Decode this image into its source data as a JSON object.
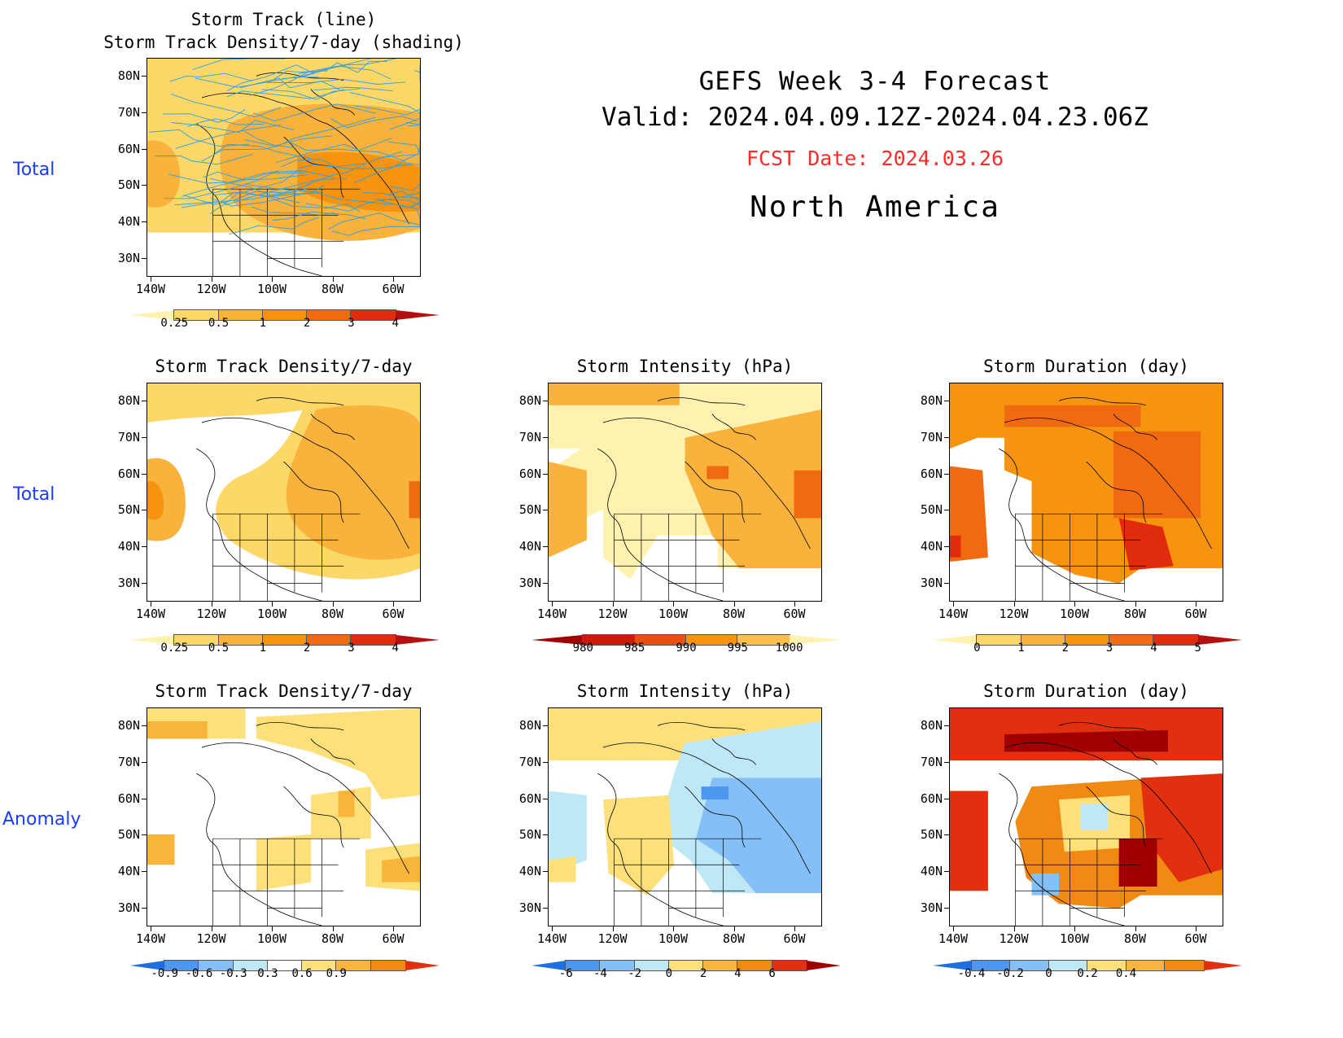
{
  "header": {
    "title": "GEFS Week 3-4 Forecast",
    "valid": "Valid: 2024.04.09.12Z-2024.04.23.06Z",
    "fcst_date": "FCST Date: 2024.03.26",
    "region": "North America"
  },
  "row_labels": [
    "Total",
    "Total",
    "Anomaly"
  ],
  "lat_labels": [
    "80N",
    "70N",
    "60N",
    "50N",
    "40N",
    "30N"
  ],
  "lon_labels": [
    "140W",
    "120W",
    "100W",
    "80W",
    "60W"
  ],
  "panels": [
    {
      "id": "p00",
      "title": "Storm Track (line)\nStorm Track Density/7-day (shading)",
      "colorbar": "density"
    },
    {
      "id": "p10",
      "title": "Storm Track Density/7-day",
      "colorbar": "density"
    },
    {
      "id": "p11",
      "title": "Storm Intensity (hPa)",
      "colorbar": "intensity"
    },
    {
      "id": "p12",
      "title": "Storm Duration (day)",
      "colorbar": "duration"
    },
    {
      "id": "p20",
      "title": "Storm Track Density/7-day",
      "colorbar": "density_anom"
    },
    {
      "id": "p21",
      "title": "Storm Intensity (hPa)",
      "colorbar": "intensity_anom"
    },
    {
      "id": "p22",
      "title": "Storm Duration (day)",
      "colorbar": "duration_anom"
    }
  ],
  "colorbars": {
    "density": {
      "labels": [
        "0.25",
        "0.5",
        "1",
        "2",
        "3",
        "4"
      ],
      "colors": [
        "#fff2b0",
        "#fdd767",
        "#f9b23c",
        "#f6940f",
        "#f06a10",
        "#e02c0c",
        "#b51010"
      ]
    },
    "intensity": {
      "labels": [
        "980",
        "985",
        "990",
        "995",
        "1000"
      ],
      "colors": [
        "#a00000",
        "#cc1a08",
        "#e8500e",
        "#f6940f",
        "#fdc04a",
        "#fff2b0"
      ]
    },
    "duration": {
      "labels": [
        "0",
        "1",
        "2",
        "3",
        "4",
        "5"
      ],
      "colors": [
        "#fff2b0",
        "#fdd767",
        "#f9b23c",
        "#f6940f",
        "#f06a10",
        "#e02c0c",
        "#b51010"
      ]
    },
    "density_anom": {
      "labels": [
        "-0.9",
        "-0.6",
        "-0.3",
        "0.3",
        "0.6",
        "0.9"
      ],
      "colors": [
        "#1f6fe0",
        "#4d97f0",
        "#85bff7",
        "#bfe8f7",
        "#ffffff",
        "#fde07a",
        "#f7b63b",
        "#f08a12",
        "#e03010"
      ]
    },
    "intensity_anom": {
      "labels": [
        "-6",
        "-4",
        "-2",
        "0",
        "2",
        "4",
        "6"
      ],
      "colors": [
        "#1f6fe0",
        "#4d97f0",
        "#85bff7",
        "#bfe8f7",
        "#fde07a",
        "#f7b63b",
        "#f08a12",
        "#e03010",
        "#a00000"
      ]
    },
    "duration_anom": {
      "labels": [
        "-0.4",
        "-0.2",
        "0",
        "0.2",
        "0.4"
      ],
      "colors": [
        "#1f6fe0",
        "#4d97f0",
        "#85bff7",
        "#bfe8f7",
        "#fde07a",
        "#f7b63b",
        "#f08a12",
        "#e03010"
      ]
    }
  }
}
